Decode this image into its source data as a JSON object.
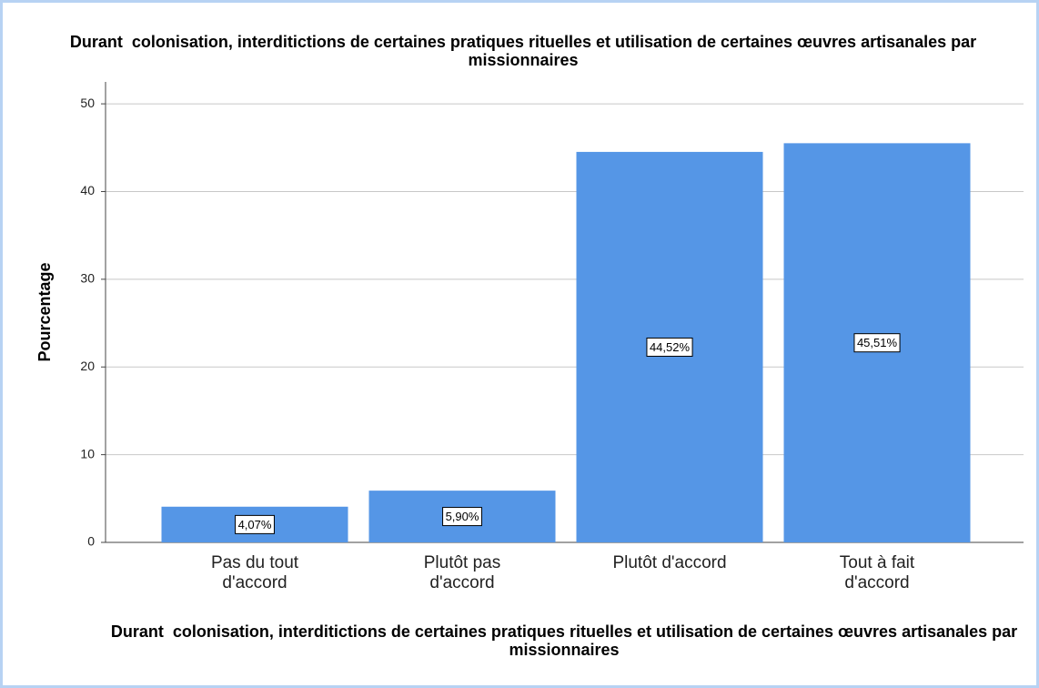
{
  "chart_data": {
    "type": "bar",
    "title": "Durant  colonisation, interditictions de certaines pratiques rituelles et utilisation de certaines œuvres artisanales par missionnaires",
    "x_label": "Durant  colonisation, interditictions de certaines pratiques rituelles et utilisation de certaines œuvres artisanales par missionnaires",
    "y_label": "Pourcentage",
    "categories": [
      "Pas du tout d'accord",
      "Plutôt pas d'accord",
      "Plutôt d'accord",
      "Tout à fait d'accord"
    ],
    "values": [
      4.07,
      5.9,
      44.52,
      45.51
    ],
    "value_labels": [
      "4,07%",
      "5,90%",
      "44,52%",
      "45,51%"
    ],
    "color": "#5596e6",
    "ylim": [
      0,
      52.5
    ],
    "yticks": [
      0,
      10,
      20,
      30,
      40,
      50
    ],
    "grid": true
  }
}
